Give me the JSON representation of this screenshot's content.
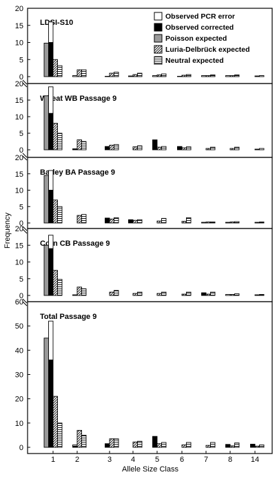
{
  "chart_data": {
    "type": "bar",
    "ylabel": "Frequency",
    "xlabel": "Allele Size Class",
    "categories": [
      "1",
      "2",
      "3",
      "4",
      "5",
      "6",
      "7",
      "8",
      "14"
    ],
    "legend": {
      "placement": "top-right",
      "entries": [
        {
          "label": "Observed PCR error",
          "style": "white"
        },
        {
          "label": "Observed corrected",
          "style": "black"
        },
        {
          "label": "Poisson expected",
          "style": "gray"
        },
        {
          "label": "Luria-Delbrück expected",
          "style": "diagonal"
        },
        {
          "label": "Neutral expected",
          "style": "horizontal"
        }
      ]
    },
    "panels": [
      {
        "title": "LDSI-S10",
        "ylim": [
          0,
          20
        ],
        "yticks": [
          0,
          5,
          10,
          15,
          20
        ],
        "stacked_observed": {
          "corrected": [
            10,
            0,
            0,
            0,
            0,
            0,
            0,
            0,
            0
          ],
          "pcr_error": [
            6,
            0.3,
            0.1,
            0.2,
            0.3,
            0.1,
            0.3,
            0.3,
            0
          ]
        },
        "series": [
          {
            "name": "Poisson expected",
            "values": [
              9.8,
              0,
              0,
              0,
              0,
              0,
              0,
              0,
              0
            ]
          },
          {
            "name": "Luria-Delbrück expected",
            "values": [
              5,
              2,
              1,
              0.6,
              0.5,
              0.4,
              0.3,
              0.3,
              0.2
            ]
          },
          {
            "name": "Neutral expected",
            "values": [
              3.2,
              2,
              1.3,
              1,
              0.8,
              0.6,
              0.5,
              0.5,
              0.3
            ]
          }
        ]
      },
      {
        "title": "Wheat WB Passage 9",
        "ylim": [
          0,
          20
        ],
        "yticks": [
          0,
          5,
          10,
          15,
          20
        ],
        "stacked_observed": {
          "corrected": [
            11,
            0.3,
            1,
            0,
            3,
            1,
            0,
            0,
            0
          ],
          "pcr_error": [
            8,
            0,
            0,
            0,
            0,
            0,
            0,
            0,
            0
          ]
        },
        "series": [
          {
            "name": "Poisson expected",
            "values": [
              16.3,
              0,
              0,
              0,
              0,
              0,
              0,
              0,
              0
            ]
          },
          {
            "name": "Luria-Delbrück expected",
            "values": [
              8,
              3,
              1.4,
              0.9,
              0.8,
              0.6,
              0.4,
              0.4,
              0.2
            ]
          },
          {
            "name": "Neutral expected",
            "values": [
              5,
              2.5,
              1.6,
              1.2,
              1,
              0.9,
              0.8,
              0.8,
              0.4
            ]
          }
        ]
      },
      {
        "title": "Barley BA Passage 9",
        "ylim": [
          0,
          20
        ],
        "yticks": [
          0,
          5,
          10,
          15,
          20
        ],
        "stacked_observed": {
          "corrected": [
            10,
            0,
            1.5,
            1,
            0,
            0,
            0,
            0,
            0
          ],
          "pcr_error": [
            6,
            0,
            0,
            0,
            0,
            0,
            0.2,
            0.2,
            0
          ]
        },
        "series": [
          {
            "name": "Poisson expected",
            "values": [
              14.5,
              0,
              0,
              0,
              0,
              0,
              0,
              0,
              0
            ]
          },
          {
            "name": "Luria-Delbrück expected",
            "values": [
              7,
              2.3,
              1.2,
              0.8,
              0.6,
              0.5,
              0.3,
              0.3,
              0.2
            ]
          },
          {
            "name": "Neutral expected",
            "values": [
              5,
              2.6,
              1.6,
              1,
              1.4,
              1.6,
              0.3,
              0.4,
              0.3
            ]
          }
        ]
      },
      {
        "title": "Corn CB Passage 9",
        "ylim": [
          0,
          20
        ],
        "yticks": [
          0,
          5,
          10,
          15,
          20
        ],
        "stacked_observed": {
          "corrected": [
            14,
            0,
            0,
            0,
            0,
            0,
            0.8,
            0,
            0
          ],
          "pcr_error": [
            4,
            0.2,
            0,
            0,
            0,
            0,
            0,
            0.3,
            0
          ]
        },
        "series": [
          {
            "name": "Poisson expected",
            "values": [
              15,
              0,
              0,
              0,
              0,
              0,
              0,
              0,
              0
            ]
          },
          {
            "name": "Luria-Delbrück expected",
            "values": [
              7.5,
              2.5,
              1,
              0.6,
              0.6,
              0.4,
              0.4,
              0.3,
              0.2
            ]
          },
          {
            "name": "Neutral expected",
            "values": [
              4.8,
              2,
              1.5,
              1,
              1,
              1,
              1,
              0.5,
              0.3
            ]
          }
        ]
      },
      {
        "title": "Total Passage 9",
        "ylim": [
          0,
          60
        ],
        "yticks": [
          0,
          10,
          20,
          30,
          40,
          50,
          60
        ],
        "stacked_observed": {
          "corrected": [
            36,
            0.5,
            1.5,
            0,
            4.5,
            0,
            0,
            1.2,
            1.3
          ],
          "pcr_error": [
            16,
            0.5,
            0,
            0,
            0,
            0,
            0,
            0,
            0
          ]
        },
        "series": [
          {
            "name": "Poisson expected",
            "values": [
              45,
              0,
              0,
              0,
              0,
              0,
              0,
              0,
              0
            ]
          },
          {
            "name": "Luria-Delbrück expected",
            "values": [
              21,
              7,
              3.5,
              2.2,
              1.5,
              1,
              0.8,
              0.6,
              0.5
            ]
          },
          {
            "name": "Neutral expected",
            "values": [
              10,
              5,
              3.5,
              2.5,
              2,
              2,
              2,
              1.8,
              1
            ]
          }
        ]
      }
    ]
  }
}
